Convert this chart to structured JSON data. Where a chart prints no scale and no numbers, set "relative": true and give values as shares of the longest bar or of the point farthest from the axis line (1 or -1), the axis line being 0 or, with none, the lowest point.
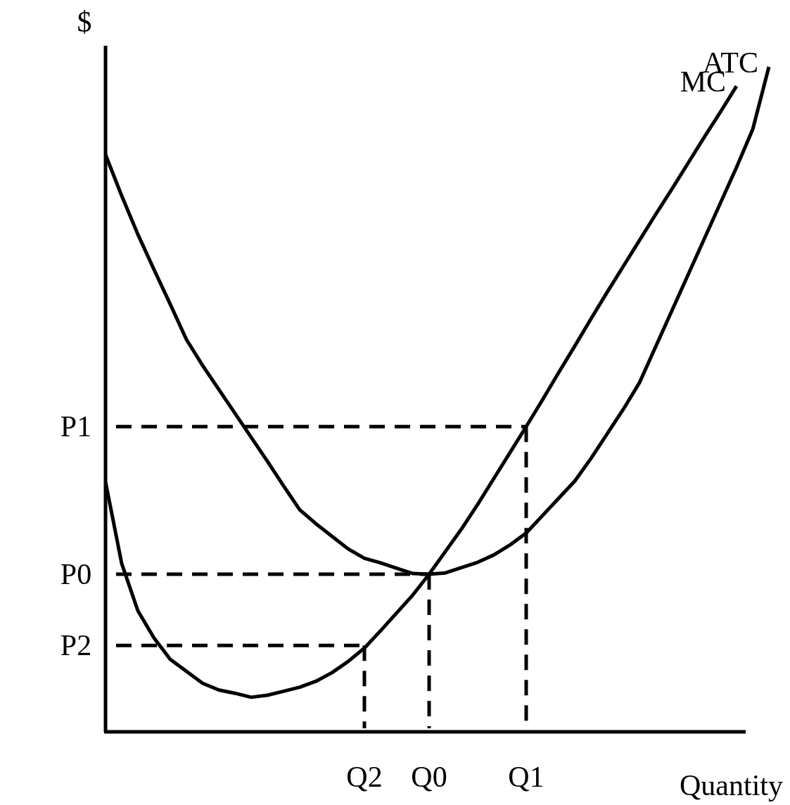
{
  "chart_data": {
    "type": "line",
    "relative": true,
    "xlabel": "Quantity",
    "ylabel": "$",
    "line_style": "solid",
    "categories": [
      null,
      null,
      null,
      null,
      null,
      null,
      null,
      null,
      null,
      null,
      null,
      null,
      null,
      null,
      null,
      null,
      "Q2",
      null,
      null,
      null,
      "Q0",
      null,
      null,
      null,
      null,
      null,
      "Q1",
      null,
      null,
      null,
      null,
      null,
      null,
      null,
      null,
      null,
      null,
      null,
      null,
      null,
      null,
      null
    ],
    "series": [
      {
        "name": "MC",
        "color": "#000000",
        "values": [
          0.376,
          0.253,
          0.182,
          0.141,
          0.109,
          0.091,
          0.073,
          0.063,
          0.058,
          0.052,
          0.055,
          0.061,
          0.067,
          0.076,
          0.089,
          0.106,
          0.126,
          0.152,
          0.179,
          0.206,
          0.237,
          0.271,
          0.305,
          0.342,
          0.381,
          0.42,
          0.459,
          0.499,
          0.54,
          0.58,
          0.621,
          0.661,
          0.7,
          0.739,
          0.778,
          0.816,
          0.855,
          0.894,
          0.932,
          0.971,
          null,
          null
        ]
      },
      {
        "name": "ATC",
        "color": "#000000",
        "values": [
          0.868,
          0.806,
          0.748,
          0.695,
          0.643,
          0.59,
          0.551,
          0.515,
          0.479,
          0.443,
          0.407,
          0.37,
          0.334,
          0.313,
          0.294,
          0.275,
          0.261,
          0.254,
          0.246,
          0.238,
          0.237,
          0.239,
          0.247,
          0.255,
          0.266,
          0.281,
          0.299,
          0.325,
          0.351,
          0.377,
          0.411,
          0.448,
          0.485,
          0.525,
          0.579,
          0.633,
          0.687,
          0.741,
          0.795,
          0.849,
          0.906,
          1
        ]
      }
    ],
    "ref_lines": [
      {
        "axis": "y",
        "value": 0.459,
        "label": "P1",
        "color": "#000000",
        "line_style": "dashed"
      },
      {
        "axis": "y",
        "value": 0.237,
        "label": "P0",
        "color": "#000000",
        "line_style": "dashed"
      },
      {
        "axis": "y",
        "value": 0.13,
        "label": "P2",
        "color": "#000000",
        "line_style": "dashed"
      },
      {
        "axis": "x",
        "value": "Q1",
        "color": "#000000",
        "line_style": "dashed"
      },
      {
        "axis": "x",
        "value": "Q0",
        "color": "#000000",
        "line_style": "dashed"
      },
      {
        "axis": "x",
        "value": "Q2",
        "color": "#000000",
        "line_style": "dashed"
      }
    ]
  }
}
